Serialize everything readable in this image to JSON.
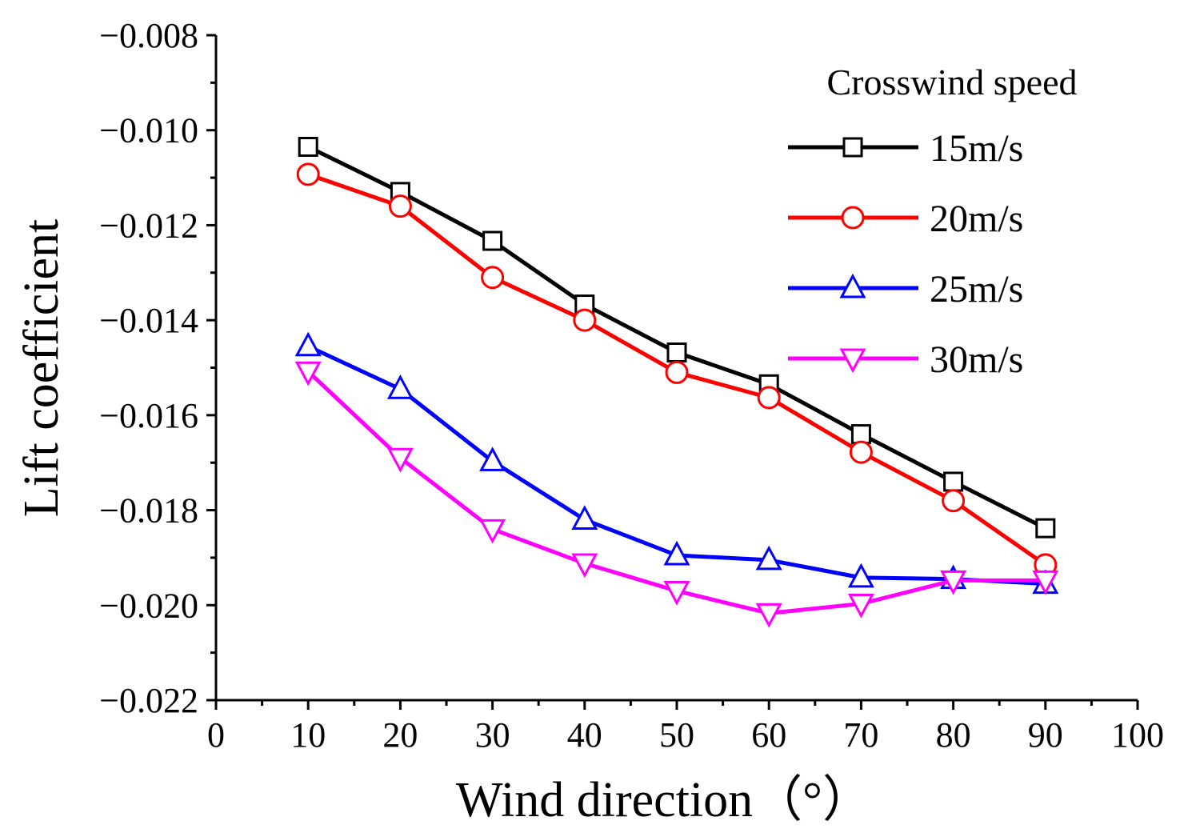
{
  "chart_data": {
    "type": "line",
    "xlabel": "Wind direction（°）",
    "ylabel": "Lift coefficient",
    "xlim": [
      0,
      100
    ],
    "ylim": [
      -0.022,
      -0.008
    ],
    "x_ticks": [
      0,
      10,
      20,
      30,
      40,
      50,
      60,
      70,
      80,
      90,
      100
    ],
    "x_tick_labels": [
      "0",
      "10",
      "20",
      "30",
      "40",
      "50",
      "60",
      "70",
      "80",
      "90",
      "100"
    ],
    "y_ticks": [
      -0.008,
      -0.01,
      -0.012,
      -0.014,
      -0.016,
      -0.018,
      -0.02,
      -0.022
    ],
    "y_tick_labels": [
      "−0.008",
      "−0.010",
      "−0.012",
      "−0.014",
      "−0.016",
      "−0.018",
      "−0.020",
      "−0.022"
    ],
    "x": [
      10,
      20,
      30,
      40,
      50,
      60,
      70,
      80,
      90
    ],
    "legend_title": "Crosswind speed",
    "legend_position": "top-right",
    "grid": false,
    "series": [
      {
        "name": "15m/s",
        "color": "#000000",
        "marker": "square",
        "values": [
          -0.01035,
          -0.0113,
          -0.01233,
          -0.01367,
          -0.01468,
          -0.01535,
          -0.0164,
          -0.0174,
          -0.01838
        ]
      },
      {
        "name": "20m/s",
        "color": "#ff0000",
        "marker": "circle",
        "values": [
          -0.01093,
          -0.0116,
          -0.0131,
          -0.014,
          -0.0151,
          -0.01563,
          -0.01678,
          -0.0178,
          -0.01915
        ]
      },
      {
        "name": "25m/s",
        "color": "#0000ff",
        "marker": "triangle-up",
        "values": [
          -0.01455,
          -0.01545,
          -0.01697,
          -0.0182,
          -0.01895,
          -0.01905,
          -0.01942,
          -0.01945,
          -0.01955
        ]
      },
      {
        "name": "30m/s",
        "color": "#ff00ff",
        "marker": "triangle-down",
        "values": [
          -0.01508,
          -0.0169,
          -0.0184,
          -0.01912,
          -0.0197,
          -0.02017,
          -0.01997,
          -0.01948,
          -0.01948
        ]
      }
    ]
  }
}
